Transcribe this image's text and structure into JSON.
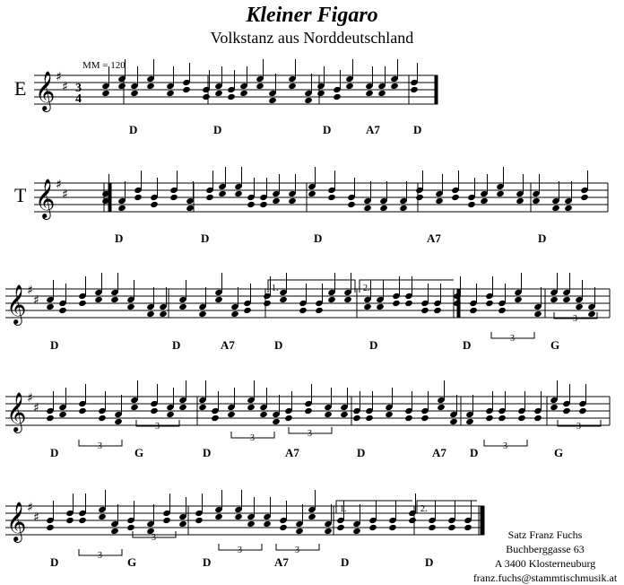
{
  "header": {
    "title": "Kleiner Figaro",
    "subtitle": "Volkstanz aus Norddeutschland"
  },
  "tempo": "MM = 120",
  "parts": {
    "e": "E",
    "t": "T"
  },
  "time_signature": {
    "num": "3",
    "den": "4"
  },
  "volta": {
    "first": "1.",
    "second": "2."
  },
  "triplet": "3",
  "chords": {
    "system1": [
      "D",
      "D",
      "D",
      "A7",
      "D"
    ],
    "system2": [
      "D",
      "D",
      "D",
      "A7",
      "D"
    ],
    "system3": [
      "D",
      "D",
      "A7",
      "D",
      "D",
      "D",
      "G"
    ],
    "system4": [
      "D",
      "G",
      "D",
      "A7",
      "D",
      "A7",
      "D",
      "G"
    ],
    "system5": [
      "D",
      "G",
      "D",
      "A7",
      "D",
      "D"
    ]
  },
  "credits": {
    "line1": "Satz Franz Fuchs",
    "line2": "Buchberggasse 63",
    "line3": "A 3400 Klosterneuburg",
    "line4": "franz.fuchs@stammtischmusik.at"
  }
}
